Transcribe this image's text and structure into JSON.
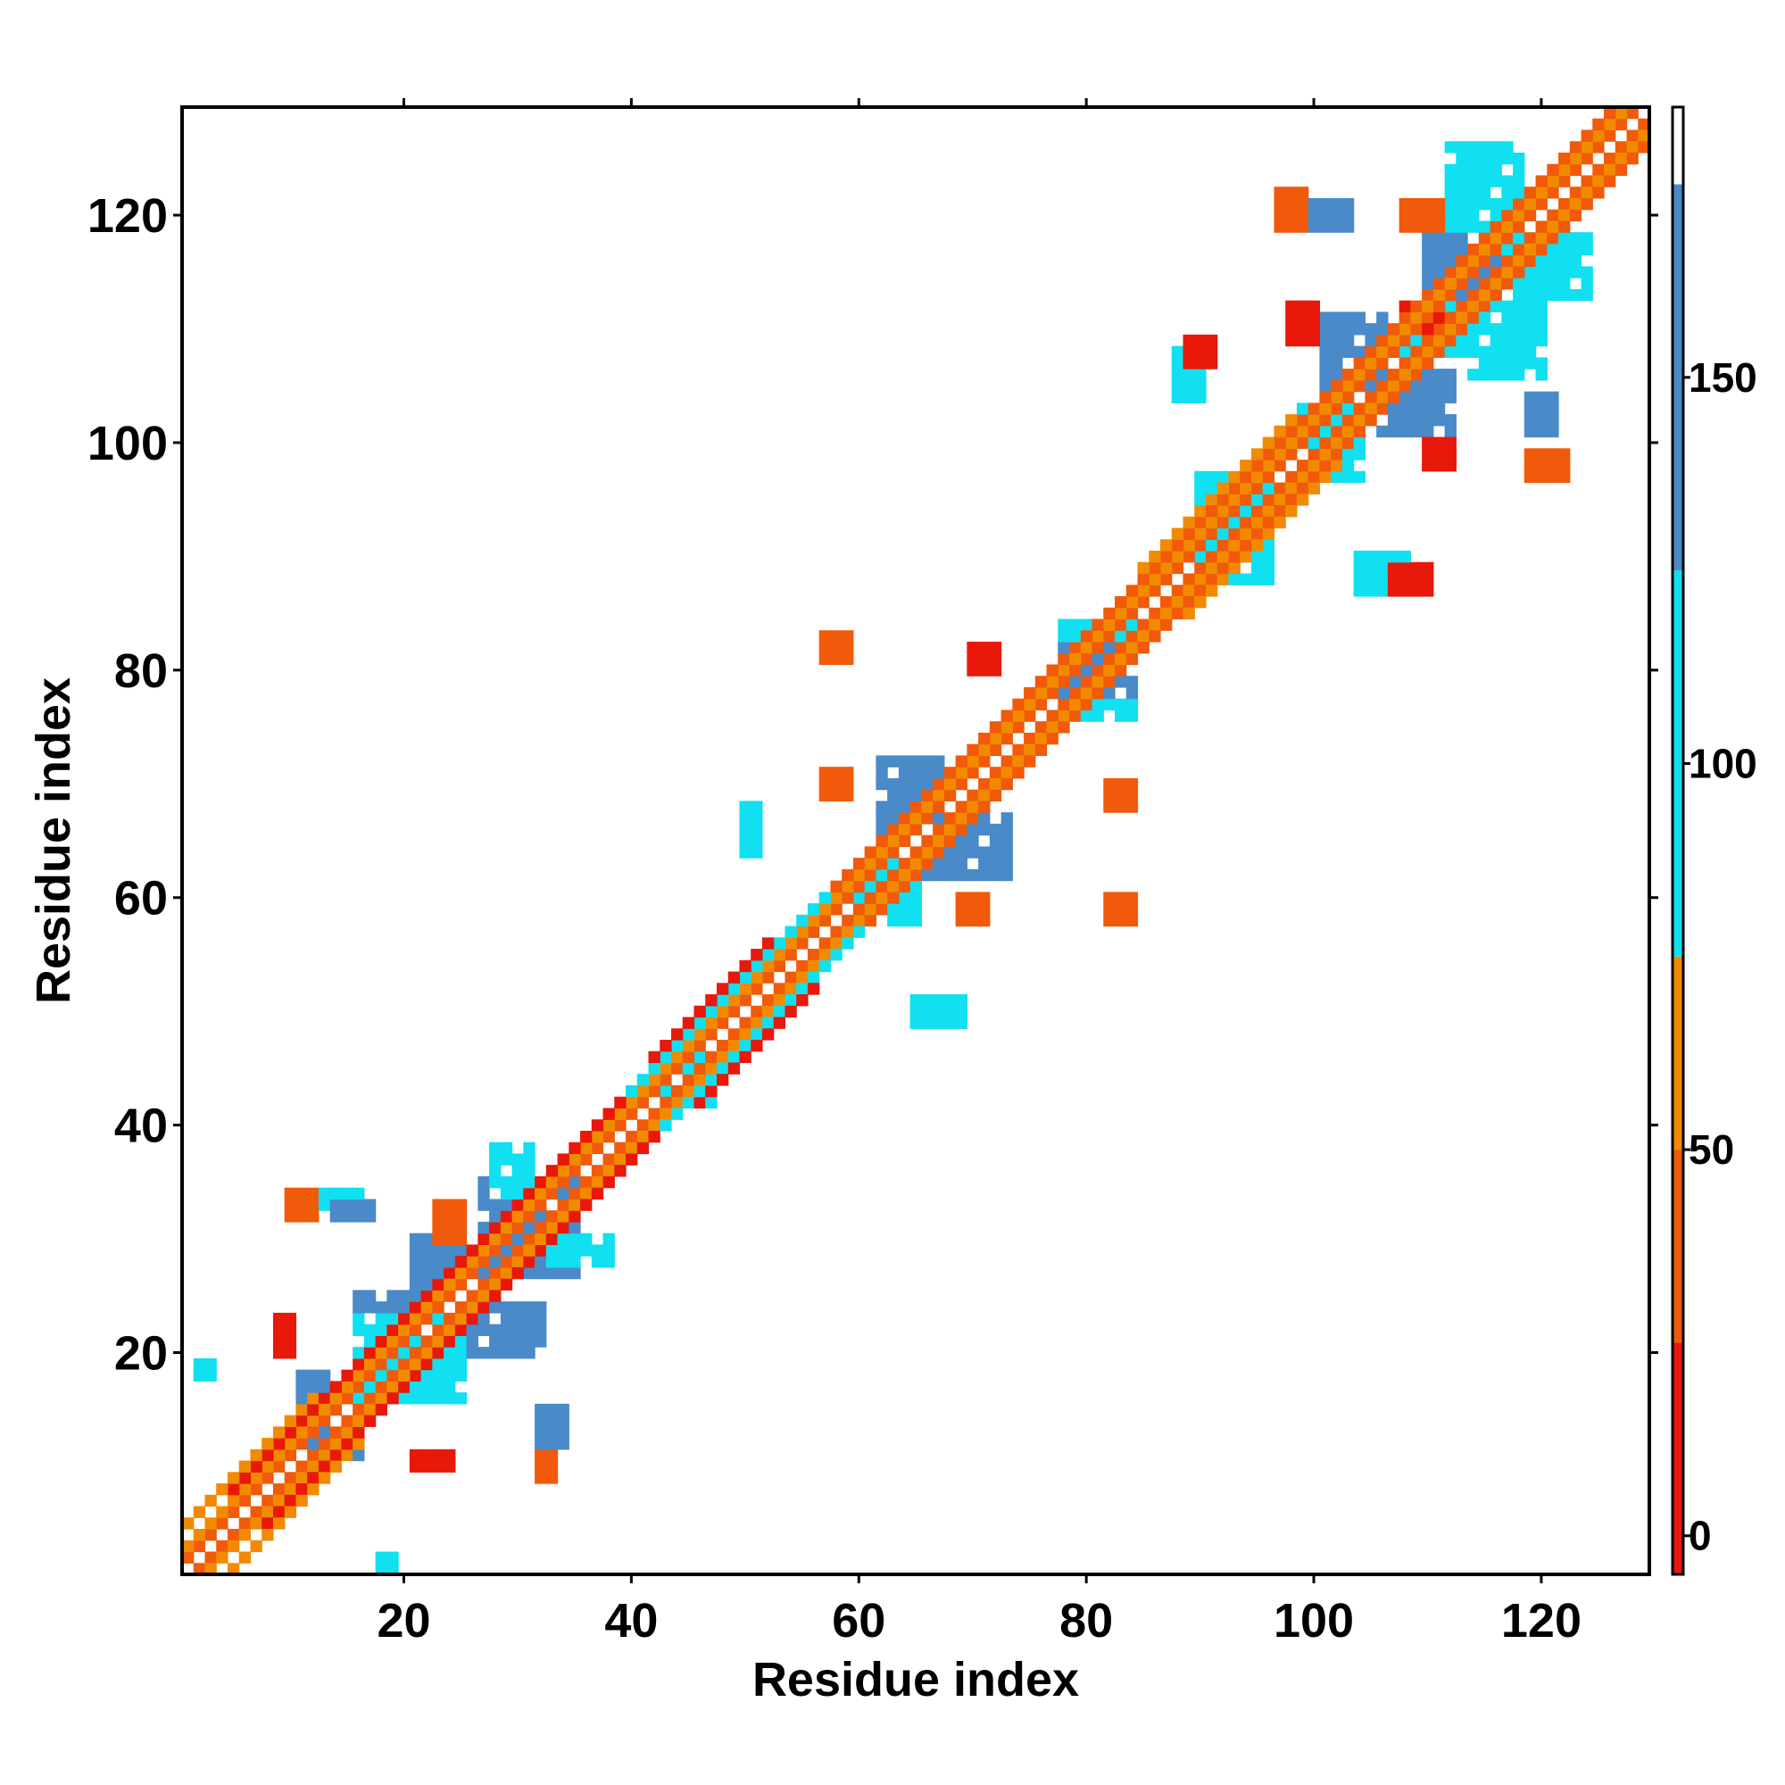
{
  "chart_data": {
    "type": "heatmap",
    "title": "",
    "xlabel": "Residue index",
    "ylabel": "Residue index",
    "xlim": [
      0.5,
      129.5
    ],
    "ylim": [
      0.5,
      129.5
    ],
    "x_ticks": [
      20,
      40,
      60,
      80,
      100,
      120
    ],
    "y_ticks": [
      20,
      40,
      60,
      80,
      100,
      120
    ],
    "grid": false,
    "legend": "colorbar right",
    "colorbar": {
      "range": [
        -5,
        185
      ],
      "ticks": [
        0,
        50,
        100,
        150
      ],
      "bands": [
        {
          "from": -5,
          "to": 25,
          "color": "#e8180a"
        },
        {
          "from": 25,
          "to": 50,
          "color": "#f05a0a"
        },
        {
          "from": 50,
          "to": 75,
          "color": "#f28a00"
        },
        {
          "from": 75,
          "to": 125,
          "color": "#10e0f0"
        },
        {
          "from": 125,
          "to": 175,
          "color": "#4a8ac8"
        },
        {
          "from": 175,
          "to": 185,
          "color": "#ffffff"
        }
      ]
    },
    "diagonal_bands": [
      {
        "start": 1,
        "end": 129,
        "offset": 1,
        "value": 40
      },
      {
        "start": 1,
        "end": 129,
        "offset": 2,
        "value": 60
      },
      {
        "start": 5,
        "end": 42,
        "offset": 3,
        "value": 20
      },
      {
        "start": 40,
        "end": 58,
        "offset": 3,
        "value": 100
      },
      {
        "start": 58,
        "end": 126,
        "offset": 3,
        "value": 35
      },
      {
        "start": 1,
        "end": 12,
        "offset": 4,
        "value": 60
      },
      {
        "start": 42,
        "end": 52,
        "offset": 4,
        "value": 15
      },
      {
        "start": 85,
        "end": 98,
        "offset": 4,
        "value": 60
      }
    ],
    "blocks": [
      {
        "x": [
          16,
          23
        ],
        "y": [
          16,
          25
        ],
        "value": 145
      },
      {
        "x": [
          16,
          25
        ],
        "y": [
          16,
          23
        ],
        "value": 110
      },
      {
        "x": [
          27,
          35
        ],
        "y": [
          27,
          35
        ],
        "value": 145
      },
      {
        "x": [
          33,
          38
        ],
        "y": [
          28,
          30
        ],
        "value": 100
      },
      {
        "x": [
          28,
          31
        ],
        "y": [
          34,
          38
        ],
        "value": 100
      },
      {
        "x": [
          21,
          25
        ],
        "y": [
          26,
          30
        ],
        "value": 145
      },
      {
        "x": [
          26,
          32
        ],
        "y": [
          20,
          24
        ],
        "value": 145
      },
      {
        "x": [
          11,
          13
        ],
        "y": [
          14,
          18
        ],
        "value": 145
      },
      {
        "x": [
          12,
          16
        ],
        "y": [
          11,
          13
        ],
        "value": 145
      },
      {
        "x": [
          43,
          47
        ],
        "y": [
          42,
          46
        ],
        "value": 100
      },
      {
        "x": [
          60,
          65
        ],
        "y": [
          58,
          63
        ],
        "value": 100
      },
      {
        "x": [
          62,
          67
        ],
        "y": [
          66,
          72
        ],
        "value": 145
      },
      {
        "x": [
          66,
          73
        ],
        "y": [
          62,
          67
        ],
        "value": 145
      },
      {
        "x": [
          78,
          84
        ],
        "y": [
          76,
          84
        ],
        "value": 100
      },
      {
        "x": [
          78,
          84
        ],
        "y": [
          78,
          82
        ],
        "value": 145
      },
      {
        "x": [
          90,
          96
        ],
        "y": [
          88,
          97
        ],
        "value": 100
      },
      {
        "x": [
          99,
          104
        ],
        "y": [
          97,
          103
        ],
        "value": 100
      },
      {
        "x": [
          101,
          106
        ],
        "y": [
          105,
          111
        ],
        "value": 145
      },
      {
        "x": [
          106,
          112
        ],
        "y": [
          101,
          106
        ],
        "value": 145
      },
      {
        "x": [
          112,
          118
        ],
        "y": [
          112,
          126
        ],
        "value": 100
      },
      {
        "x": [
          110,
          116
        ],
        "y": [
          113,
          118
        ],
        "value": 145
      },
      {
        "x": [
          117,
          124
        ],
        "y": [
          113,
          118
        ],
        "value": 100
      },
      {
        "x": [
          108,
          117
        ],
        "y": [
          108,
          112
        ],
        "value": 100
      },
      {
        "x": [
          114,
          120
        ],
        "y": [
          106,
          112
        ],
        "value": 100
      }
    ],
    "spots": [
      {
        "x": [
          10,
          12
        ],
        "y": [
          32,
          34
        ],
        "value": 40
      },
      {
        "x": [
          13,
          16
        ],
        "y": [
          33,
          34
        ],
        "value": 100
      },
      {
        "x": [
          14,
          17
        ],
        "y": [
          32,
          33
        ],
        "value": 145
      },
      {
        "x": [
          23,
          25
        ],
        "y": [
          30,
          33
        ],
        "value": 40
      },
      {
        "x": [
          9,
          10
        ],
        "y": [
          20,
          23
        ],
        "value": 15
      },
      {
        "x": [
          21,
          24
        ],
        "y": [
          10,
          11
        ],
        "value": 15
      },
      {
        "x": [
          32,
          33
        ],
        "y": [
          9,
          11
        ],
        "value": 40
      },
      {
        "x": [
          32,
          34
        ],
        "y": [
          12,
          15
        ],
        "value": 145
      },
      {
        "x": [
          2,
          3
        ],
        "y": [
          18,
          19
        ],
        "value": 100
      },
      {
        "x": [
          18,
          19
        ],
        "y": [
          1,
          2
        ],
        "value": 100
      },
      {
        "x": [
          57,
          59
        ],
        "y": [
          81,
          83
        ],
        "value": 30
      },
      {
        "x": [
          70,
          72
        ],
        "y": [
          80,
          82
        ],
        "value": 15
      },
      {
        "x": [
          50,
          51
        ],
        "y": [
          64,
          68
        ],
        "value": 100
      },
      {
        "x": [
          57,
          59
        ],
        "y": [
          69,
          71
        ],
        "value": 30
      },
      {
        "x": [
          82,
          84
        ],
        "y": [
          58,
          60
        ],
        "value": 30
      },
      {
        "x": [
          69,
          71
        ],
        "y": [
          58,
          60
        ],
        "value": 40
      },
      {
        "x": [
          65,
          69
        ],
        "y": [
          49,
          51
        ],
        "value": 100
      },
      {
        "x": [
          82,
          84
        ],
        "y": [
          68,
          70
        ],
        "value": 30
      },
      {
        "x": [
          88,
          90
        ],
        "y": [
          104,
          108
        ],
        "value": 100
      },
      {
        "x": [
          89,
          91
        ],
        "y": [
          107,
          109
        ],
        "value": 15
      },
      {
        "x": [
          97,
          99
        ],
        "y": [
          119,
          122
        ],
        "value": 40
      },
      {
        "x": [
          100,
          103
        ],
        "y": [
          119,
          121
        ],
        "value": 145
      },
      {
        "x": [
          108,
          111
        ],
        "y": [
          119,
          121
        ],
        "value": 40
      },
      {
        "x": [
          98,
          100
        ],
        "y": [
          109,
          112
        ],
        "value": 15
      },
      {
        "x": [
          108,
          111
        ],
        "y": [
          110,
          112
        ],
        "value": 15
      },
      {
        "x": [
          110,
          112
        ],
        "y": [
          98,
          100
        ],
        "value": 15
      },
      {
        "x": [
          119,
          122
        ],
        "y": [
          97,
          99
        ],
        "value": 40
      },
      {
        "x": [
          119,
          121
        ],
        "y": [
          101,
          104
        ],
        "value": 145
      },
      {
        "x": [
          104,
          108
        ],
        "y": [
          87,
          90
        ],
        "value": 100
      },
      {
        "x": [
          107,
          110
        ],
        "y": [
          87,
          89
        ],
        "value": 15
      }
    ]
  }
}
